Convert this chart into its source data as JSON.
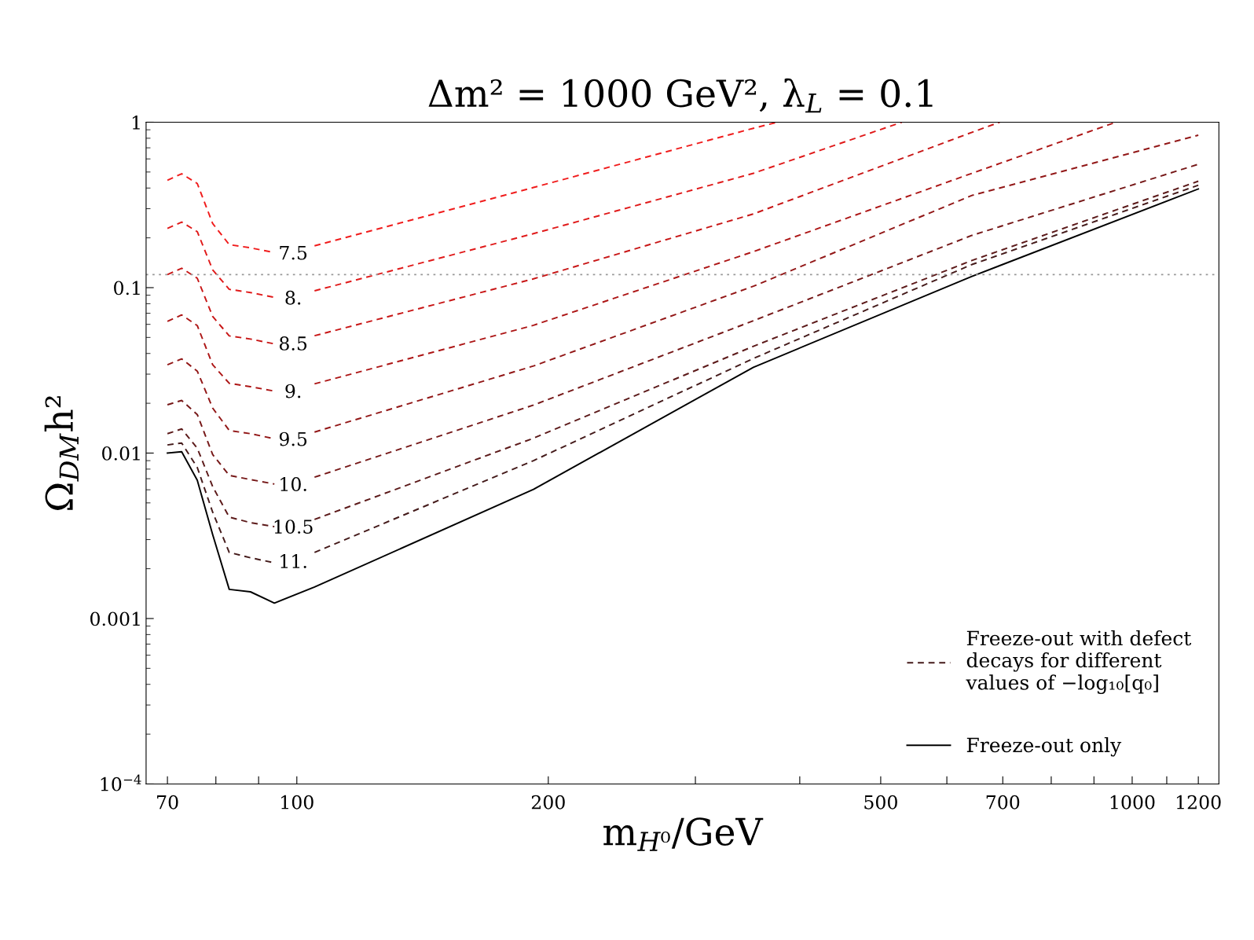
{
  "chart_data": {
    "type": "line",
    "title": "Δm² = 1000 GeV², λ$_{L}$ = 0.1",
    "xlabel": "m$_{H⁰}$/GeV",
    "ylabel": "Ω$_{DM}$h²",
    "legend_title": "Freeze-out with defect\ndecays for different\nvalues of −log₁₀[q₀]",
    "log": "xy",
    "grid": false,
    "legend": "bottom right",
    "marker": "none",
    "xlim": [
      66,
      1270
    ],
    "ylim": [
      0.0001,
      1
    ],
    "xticks": [
      70,
      {
        "value": 80,
        "label": null
      },
      {
        "value": 90,
        "label": null
      },
      100,
      200,
      {
        "value": 300,
        "label": null
      },
      {
        "value": 400,
        "label": null
      },
      500,
      {
        "value": 600,
        "label": null
      },
      700,
      {
        "value": 800,
        "label": null
      },
      {
        "value": 900,
        "label": null
      },
      1000,
      {
        "value": 1100,
        "label": null
      },
      1200
    ],
    "yticks": [
      {
        "value": 0.0001,
        "label": "10$^{−4}$"
      },
      0.001,
      0.01,
      0.1,
      1
    ],
    "ref_lines": [
      {
        "axis": "y",
        "value": 0.12,
        "color": "#999999",
        "line_style": "dotted"
      }
    ],
    "series": [
      {
        "name": "7.5",
        "color": "#f01c1c",
        "line_style": "dashed",
        "x": [
          70,
          72.8,
          76,
          79.3,
          83,
          88,
          94,
          99,
          105,
          192,
          352,
          376
        ],
        "values": [
          0.446,
          0.488,
          0.426,
          0.244,
          0.182,
          0.174,
          0.163,
          null,
          0.179,
          0.403,
          0.919,
          1
        ]
      },
      {
        "name": "8.",
        "color": "#e01a1a",
        "line_style": "dashed",
        "x": [
          70,
          72.8,
          76,
          79.3,
          83,
          88,
          94,
          99,
          105,
          192,
          352,
          530
        ],
        "values": [
          0.228,
          0.249,
          0.218,
          0.128,
          0.0977,
          0.0934,
          0.0873,
          null,
          0.0957,
          0.212,
          0.491,
          1
        ]
      },
      {
        "name": "8.5",
        "color": "#c81616",
        "line_style": "dashed",
        "x": [
          70,
          72.8,
          76,
          79.3,
          83,
          88,
          94,
          99,
          105,
          192,
          352,
          643,
          694
        ],
        "values": [
          0.12,
          0.131,
          0.114,
          0.0669,
          0.0511,
          0.0489,
          0.0457,
          null,
          0.0512,
          0.113,
          0.279,
          0.869,
          1
        ]
      },
      {
        "name": "9.",
        "color": "#ad1616",
        "line_style": "dashed",
        "x": [
          70,
          72.8,
          76,
          79.3,
          83,
          88,
          94,
          99,
          105,
          192,
          352,
          643,
          956
        ],
        "values": [
          0.0625,
          0.0684,
          0.059,
          0.0342,
          0.0264,
          0.0252,
          0.0237,
          null,
          0.0262,
          0.0592,
          0.165,
          0.491,
          1
        ]
      },
      {
        "name": "9.5",
        "color": "#921717",
        "line_style": "dashed",
        "x": [
          70,
          72.8,
          76,
          79.3,
          83,
          88,
          94,
          99,
          105,
          192,
          352,
          643,
          1200
        ],
        "values": [
          0.0342,
          0.0371,
          0.0313,
          0.0187,
          0.0137,
          0.0131,
          0.0122,
          null,
          0.0134,
          0.0336,
          0.102,
          0.361,
          0.835
        ]
      },
      {
        "name": "10.",
        "color": "#761818",
        "line_style": "dashed",
        "x": [
          70,
          72.8,
          76,
          79.3,
          83,
          88,
          94,
          99,
          105,
          192,
          352,
          643,
          1200
        ],
        "values": [
          0.0196,
          0.0208,
          0.0171,
          0.0098,
          0.00733,
          0.00692,
          0.0065,
          null,
          0.00715,
          0.0195,
          0.0631,
          0.207,
          0.557
        ]
      },
      {
        "name": "10.5",
        "color": "#5c1a1a",
        "line_style": "dashed",
        "x": [
          70,
          72.8,
          76,
          79.3,
          83,
          88,
          94,
          99,
          105,
          192,
          352,
          643,
          1200
        ],
        "values": [
          0.0131,
          0.014,
          0.0107,
          0.00627,
          0.0041,
          0.0038,
          0.00359,
          null,
          0.00397,
          0.0123,
          0.0442,
          0.146,
          0.44
        ]
      },
      {
        "name": "11.",
        "color": "#441a1a",
        "line_style": "dashed",
        "x": [
          70,
          72.8,
          76,
          79.3,
          83,
          88,
          94,
          99,
          105,
          192,
          352,
          643,
          1200
        ],
        "values": [
          0.0112,
          0.0115,
          0.00819,
          0.00439,
          0.00251,
          0.00233,
          0.00217,
          null,
          0.00251,
          0.009,
          0.0373,
          0.138,
          0.416
        ]
      },
      {
        "name": "Freeze-out only",
        "color": "#000000",
        "line_style": "solid",
        "x": [
          70,
          72.8,
          76,
          79.3,
          83,
          88,
          94,
          105,
          192,
          352,
          643,
          1200
        ],
        "values": [
          0.01,
          0.0102,
          0.00685,
          0.00321,
          0.0015,
          0.00145,
          0.00124,
          0.00155,
          0.00604,
          0.033,
          0.117,
          0.395
        ]
      }
    ]
  }
}
